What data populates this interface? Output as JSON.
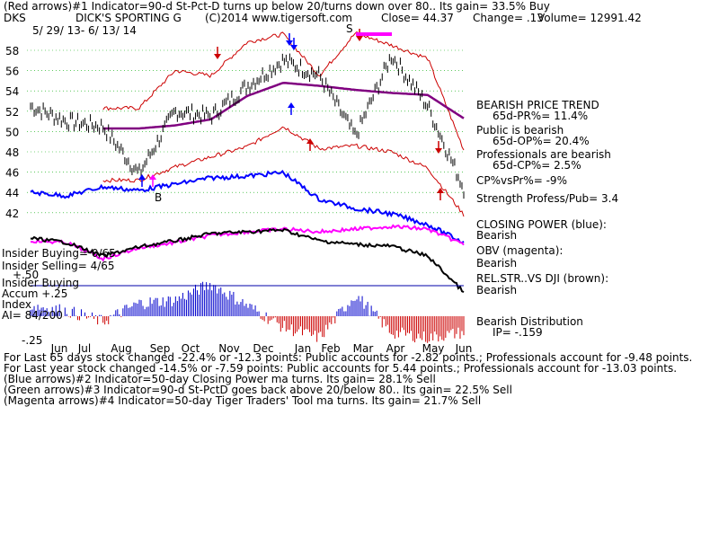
{
  "header": {
    "line1": "(Red arrows)#1 Indicator=90-d St-Pct-D turns up below 20/turns down over 80.. Its gain= 33.5% Buy",
    "ticker": "DKS",
    "name": "DICK'S SPORTING G",
    "copyright": "(C)2014 www.tigersoft.com",
    "close": "Close=  44.37",
    "change": "Change= .13",
    "volume": "Volume= 12991.42",
    "dates": "5/ 29/ 13-  6/ 13/ 14"
  },
  "right_panel": [
    "BEARISH PRICE TREND",
    "65d-PR%= 11.4%",
    "Public is bearish",
    "65d-OP%= 20.4%",
    "Professionals are bearish",
    "65d-CP%= 2.5%",
    "CP%vsPr%= -9%",
    "Strength Profess/Pub= 3.4",
    "CLOSING POWER (blue):",
    "Bearish",
    "OBV (magenta):",
    "Bearish",
    "REL.STR..VS DJI (brown):",
    "Bearish",
    "Bearish Distribution",
    "IP= -.159"
  ],
  "left_panel": {
    "insider_buying": "Insider Buying= 0/65",
    "insider_selling": "Insider Selling= 4/65",
    "insider_buying_label": "Insider Buying",
    "plus50": "+.50",
    "accum": "Accum  +.25",
    "index": "Index",
    "ai": "AI= 84/200",
    "minus25": "-.25"
  },
  "footer": [
    "For Last 65 days stock changed -22.4% or -12.3 points:  Public accounts for -2.82 points.;  Professionals account for -9.48 points.",
    "For Last year stock changed -14.5% or -7.59 points:  Public accounts for  5.44 points.;  Professionals account for -13.03 points.",
    "(Blue arrows)#2 Indicator=50-day Closing Power ma turns. Its gain= 28.1% Sell",
    "(Green arrows)#3 Indicator=90-d St-PctD goes back above 20/below 80.. Its gain= 22.5% Sell",
    "(Magenta arrows)#4 Indicator=50-day Tiger Traders' Tool ma turns. Its gain= 21.7% Sell"
  ],
  "annotations": {
    "buy_label": "B",
    "sell_label": "S"
  },
  "colors": {
    "price": "#000000",
    "band": "#cc0000",
    "ma50": "#800080",
    "closing_power": "#0000ff",
    "obv": "#ff00ff",
    "relstr": "#000000",
    "accum_pos": "#0000cc",
    "accum_neg": "#cc0000",
    "grid": "#00aa00"
  },
  "chart_data": {
    "type": "line",
    "title": "DICK'S SPORTING G",
    "x_tick_labels": [
      "Jun",
      "Jul",
      "Aug",
      "Sep",
      "Oct",
      "Nov",
      "Dec",
      "Jan",
      "Feb",
      "Mar",
      "Apr",
      "May",
      "Jun"
    ],
    "y_tick_labels": [
      "58",
      "56",
      "54",
      "52",
      "50",
      "48",
      "46",
      "44",
      "42"
    ],
    "ylim": [
      41,
      60
    ],
    "x": [
      "Jun",
      "Jul",
      "Aug",
      "Sep",
      "Oct",
      "Nov",
      "Dec",
      "Jan",
      "Feb",
      "Mar",
      "Apr",
      "May",
      "Jun"
    ],
    "series": [
      {
        "name": "price",
        "values": [
          52.5,
          51,
          50.5,
          45.8,
          52,
          51.5,
          54.5,
          57,
          55.5,
          49.5,
          57.5,
          52.5,
          44.4
        ]
      },
      {
        "name": "50-day ma",
        "values": [
          null,
          null,
          null,
          50.3,
          50.6,
          51.2,
          53.5,
          54.8,
          54.5,
          54.1,
          53.8,
          53.6,
          51.3
        ]
      },
      {
        "name": "upper band",
        "values": [
          null,
          null,
          null,
          52.3,
          56,
          55.5,
          58.8,
          59.6,
          55.5,
          59.7,
          58.5,
          57.2,
          48.2
        ]
      },
      {
        "name": "lower band",
        "values": [
          null,
          null,
          null,
          45.2,
          46.5,
          47.5,
          48.5,
          50.5,
          48.3,
          48.6,
          48,
          46.4,
          41.8
        ]
      }
    ],
    "indicators": {
      "accum_index": {
        "values": [
          0.1,
          0.05,
          -0.05,
          0.12,
          0.15,
          0.3,
          0.1,
          -0.1,
          -0.2,
          0.2,
          -0.15,
          -0.2,
          -0.15
        ]
      }
    }
  }
}
